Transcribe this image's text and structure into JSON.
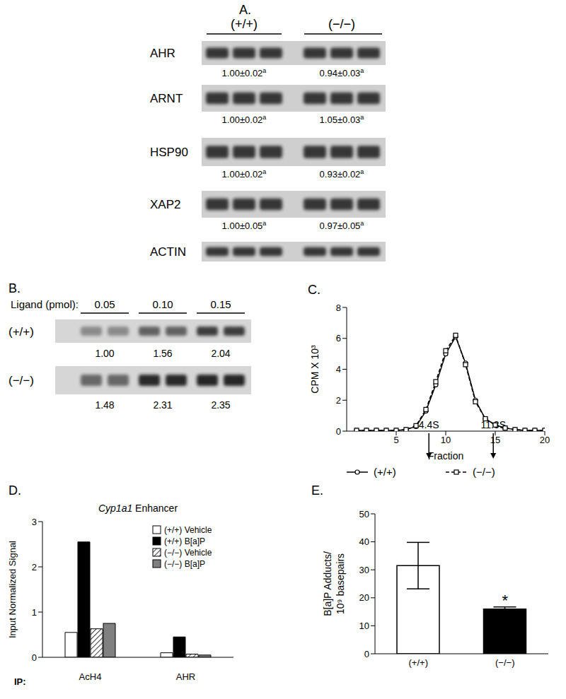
{
  "blots": {
    "panel": "A.",
    "groups": [
      "(+/+)",
      "(−/−)"
    ],
    "rows": [
      {
        "name": "AHR",
        "labels": [
          {
            "text": "1.00±0.02",
            "sup": "a"
          },
          {
            "text": "0.94±0.03",
            "sup": "a"
          }
        ]
      },
      {
        "name": "ARNT",
        "labels": [
          {
            "text": "1.00±0.02",
            "sup": "a"
          },
          {
            "text": "1.05±0.03",
            "sup": "a"
          }
        ]
      },
      {
        "name": "HSP90",
        "labels": [
          {
            "text": "1.00±0.02",
            "sup": "a"
          },
          {
            "text": "0.93±0.02",
            "sup": "a"
          }
        ]
      },
      {
        "name": "XAP2",
        "labels": [
          {
            "text": "1.00±0.05",
            "sup": "a"
          },
          {
            "text": "0.97±0.05",
            "sup": "a"
          }
        ]
      },
      {
        "name": "ACTIN",
        "labels": []
      }
    ]
  },
  "ligand_blot": {
    "panel": "B.",
    "header": "Ligand (pmol):",
    "doses": [
      "0.05",
      "0.10",
      "0.15"
    ],
    "rows": [
      {
        "name": "(+/+)",
        "labels": [
          "1.00",
          "1.56",
          "2.04"
        ]
      },
      {
        "name": "(−/−)",
        "labels": [
          "1.48",
          "2.31",
          "2.35"
        ]
      }
    ]
  },
  "chart_data": [
    {
      "panel": "C.",
      "type": "line",
      "x_label": "Fraction",
      "y_label": "CPM X 10³",
      "x": [
        1,
        2,
        3,
        4,
        5,
        6,
        7,
        8,
        9,
        10,
        11,
        12,
        13,
        14,
        15,
        16,
        17,
        18,
        19,
        20
      ],
      "xlim": [
        0,
        20
      ],
      "xticks": [
        5,
        10,
        15,
        20
      ],
      "ylim": [
        0,
        8
      ],
      "yticks": [
        0,
        2,
        4,
        6,
        8
      ],
      "legend": "bottom",
      "series": [
        {
          "name": "(+/+)",
          "color": "#000000",
          "marker": "circle",
          "line_style": "solid",
          "values": [
            0.05,
            0.05,
            0.05,
            0.05,
            0.05,
            0.1,
            0.3,
            1.3,
            3.0,
            5.0,
            6.1,
            4.4,
            2.0,
            0.8,
            0.4,
            0.2,
            0.1,
            0.05,
            0.05,
            0.05
          ]
        },
        {
          "name": "(−/−)",
          "color": "#000000",
          "marker": "square",
          "line_style": "dashed",
          "values": [
            0.05,
            0.05,
            0.05,
            0.05,
            0.05,
            0.1,
            0.35,
            1.4,
            3.2,
            5.2,
            6.2,
            4.3,
            1.9,
            0.8,
            0.4,
            0.2,
            0.1,
            0.05,
            0.05,
            0.05
          ]
        }
      ],
      "annotations": [
        {
          "text": "4.4S",
          "x": 8.3
        },
        {
          "text": "11.3S",
          "x": 14.8
        }
      ]
    },
    {
      "panel": "D.",
      "type": "bar",
      "title": "Cyp1a1 Enhancer",
      "x_label": "IP:",
      "y_label": "Input Normalized Signal",
      "categories": [
        "AcH4",
        "AHR"
      ],
      "ylim": [
        0,
        3
      ],
      "yticks": [
        0,
        1,
        2,
        3
      ],
      "legend": "upper right",
      "series": [
        {
          "name": "(+/+) Vehicle",
          "color": "#ffffff",
          "values": [
            0.55,
            0.1
          ]
        },
        {
          "name": "(+/+) B[a]P",
          "color": "#000000",
          "values": [
            2.55,
            0.45
          ]
        },
        {
          "name": "(−/−) Vehicle",
          "color": "#ffffff",
          "values": [
            0.63,
            0.07
          ]
        },
        {
          "name": "(−/−) B[a]P",
          "color": "#808080",
          "values": [
            0.75,
            0.05
          ]
        }
      ]
    },
    {
      "panel": "E.",
      "type": "bar",
      "y_label": [
        "B[a]P Adducts/",
        "10⁹ basepairs"
      ],
      "categories": [
        "(+/+)",
        "(−/−)"
      ],
      "values": [
        31.5,
        16
      ],
      "errors": [
        8.3,
        0.7
      ],
      "colors": [
        "#ffffff",
        "#000000"
      ],
      "ylim": [
        0,
        50
      ],
      "yticks": [
        0,
        10,
        20,
        30,
        40,
        50
      ],
      "annotations": [
        {
          "text": "*",
          "category": "(−/−)"
        }
      ]
    }
  ]
}
